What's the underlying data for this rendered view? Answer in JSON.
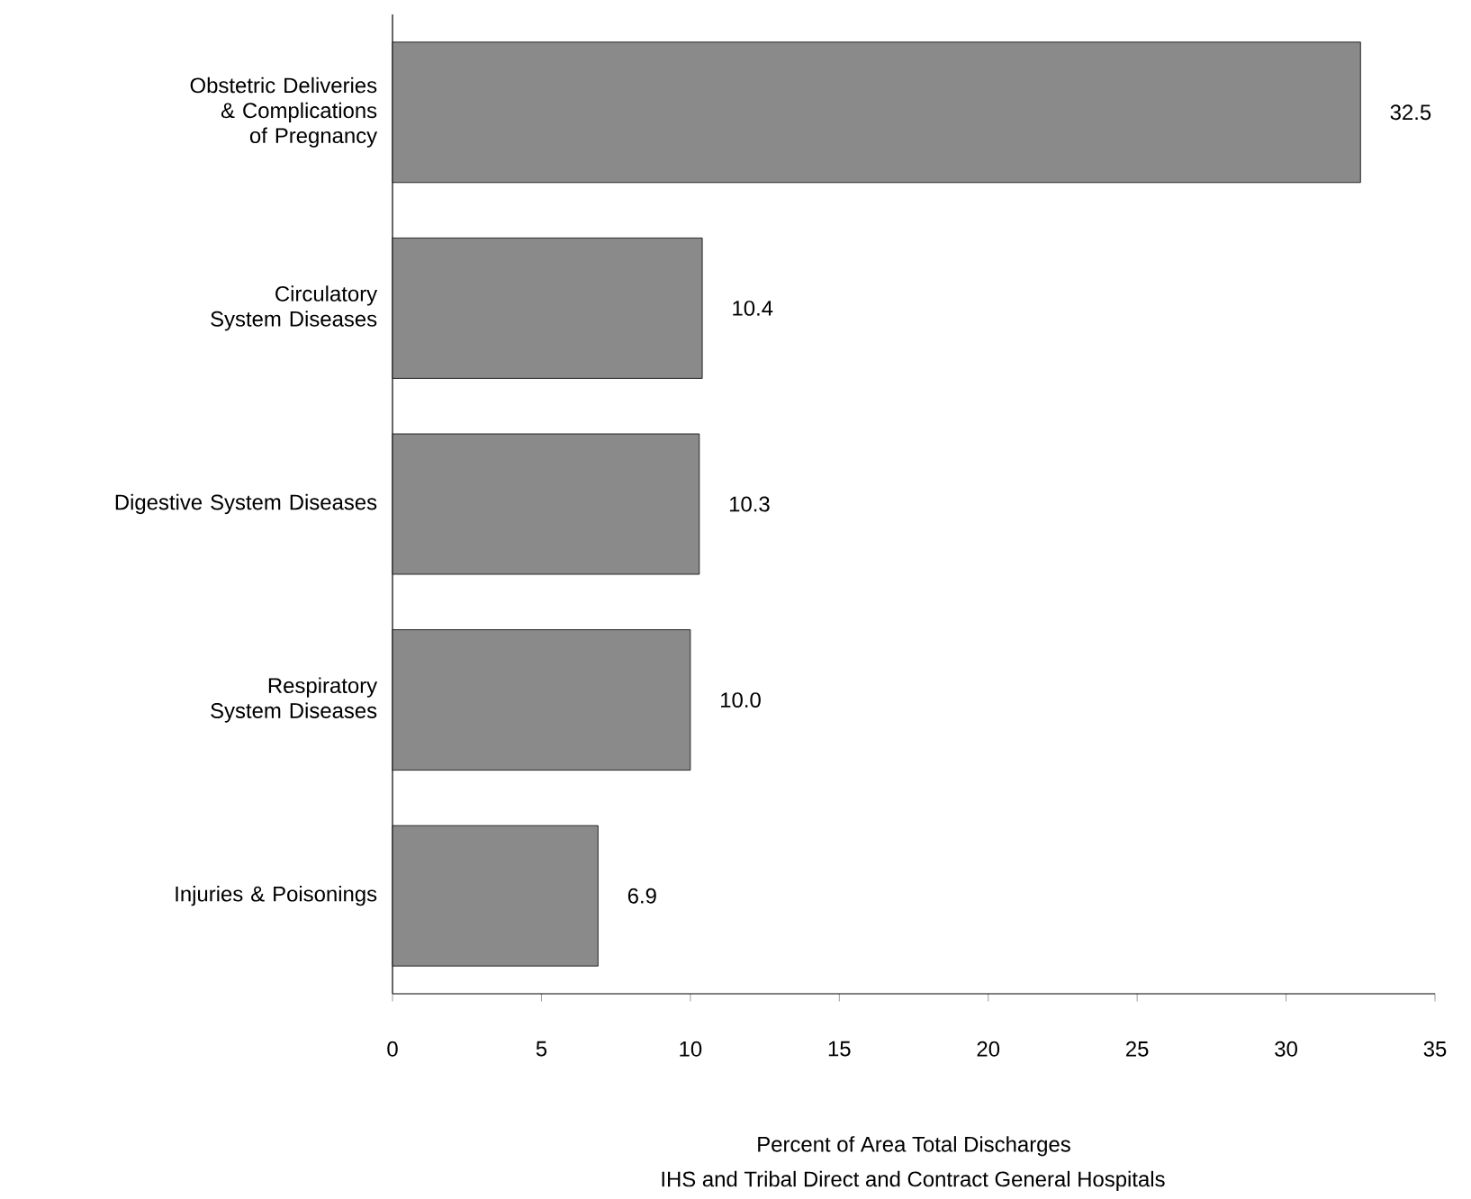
{
  "chart_data": {
    "type": "bar",
    "orientation": "horizontal",
    "categories": [
      "Obstetric Deliveries & Complications of Pregnancy",
      "Circulatory System Diseases",
      "Digestive System Diseases",
      "Respiratory System Diseases",
      "Injuries & Poisonings"
    ],
    "values": [
      32.5,
      10.4,
      10.3,
      10.0,
      6.9
    ],
    "value_labels": [
      "32.5",
      "10.4",
      "10.3",
      "10.0",
      "6.9"
    ],
    "color": "#8a8a8a",
    "xlim": [
      0,
      35
    ],
    "xticks": [
      0,
      5,
      10,
      15,
      20,
      25,
      30,
      35
    ],
    "xlabel": "Percent of Area Total Discharges",
    "annotations": [
      "IHS and Tribal Direct and Contract General Hospitals"
    ],
    "grid": false
  }
}
